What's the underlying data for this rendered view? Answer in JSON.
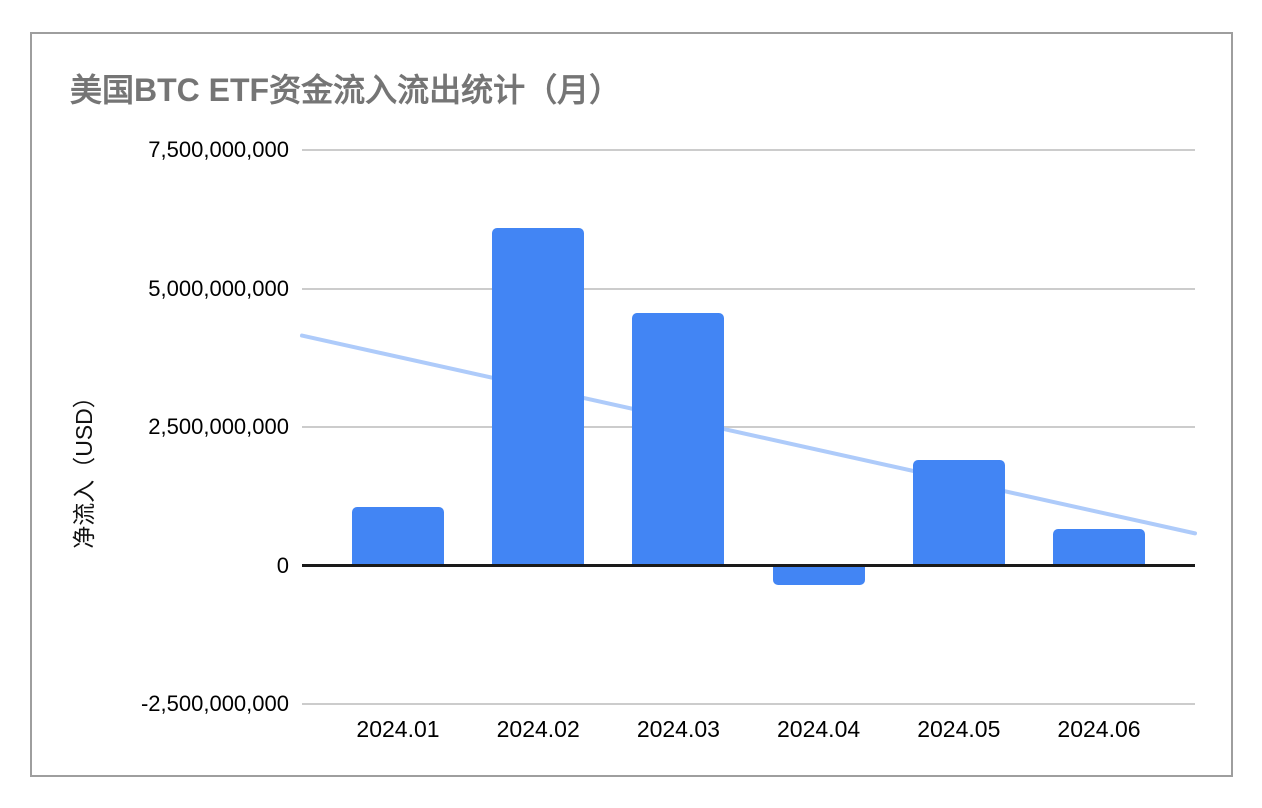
{
  "chart": {
    "colors": {
      "bar": "#4285f4",
      "trendline": "#aecbfa",
      "title_text": "#757575",
      "axis_text": "#000000",
      "gridline": "#cccccc",
      "zero_axis": "#1a1a1a",
      "frame_border": "#9e9e9e",
      "background": "#ffffff"
    }
  },
  "chart_data": {
    "type": "bar",
    "title": "美国BTC ETF资金流入流出统计（月）",
    "xlabel": "",
    "ylabel": "净流入（USD）",
    "categories": [
      "2024.01",
      "2024.02",
      "2024.03",
      "2024.04",
      "2024.05",
      "2024.06"
    ],
    "series": [
      {
        "type": "bar",
        "color": "#4285f4",
        "values": [
          1050000000,
          6100000000,
          4550000000,
          -350000000,
          1900000000,
          650000000
        ]
      },
      {
        "type": "trendline",
        "color": "#aecbfa",
        "start_value": 4150000000,
        "end_value": 580000000,
        "span": "full-plot-width"
      }
    ],
    "y_ticks": [
      {
        "value": 7500000000,
        "label": "7,500,000,000"
      },
      {
        "value": 5000000000,
        "label": "5,000,000,000"
      },
      {
        "value": 2500000000,
        "label": "2,500,000,000"
      },
      {
        "value": 0,
        "label": "0"
      },
      {
        "value": -2500000000,
        "label": "-2,500,000,000"
      }
    ],
    "ylim": [
      -2500000000,
      7500000000
    ],
    "grid": true,
    "legend": "none"
  }
}
